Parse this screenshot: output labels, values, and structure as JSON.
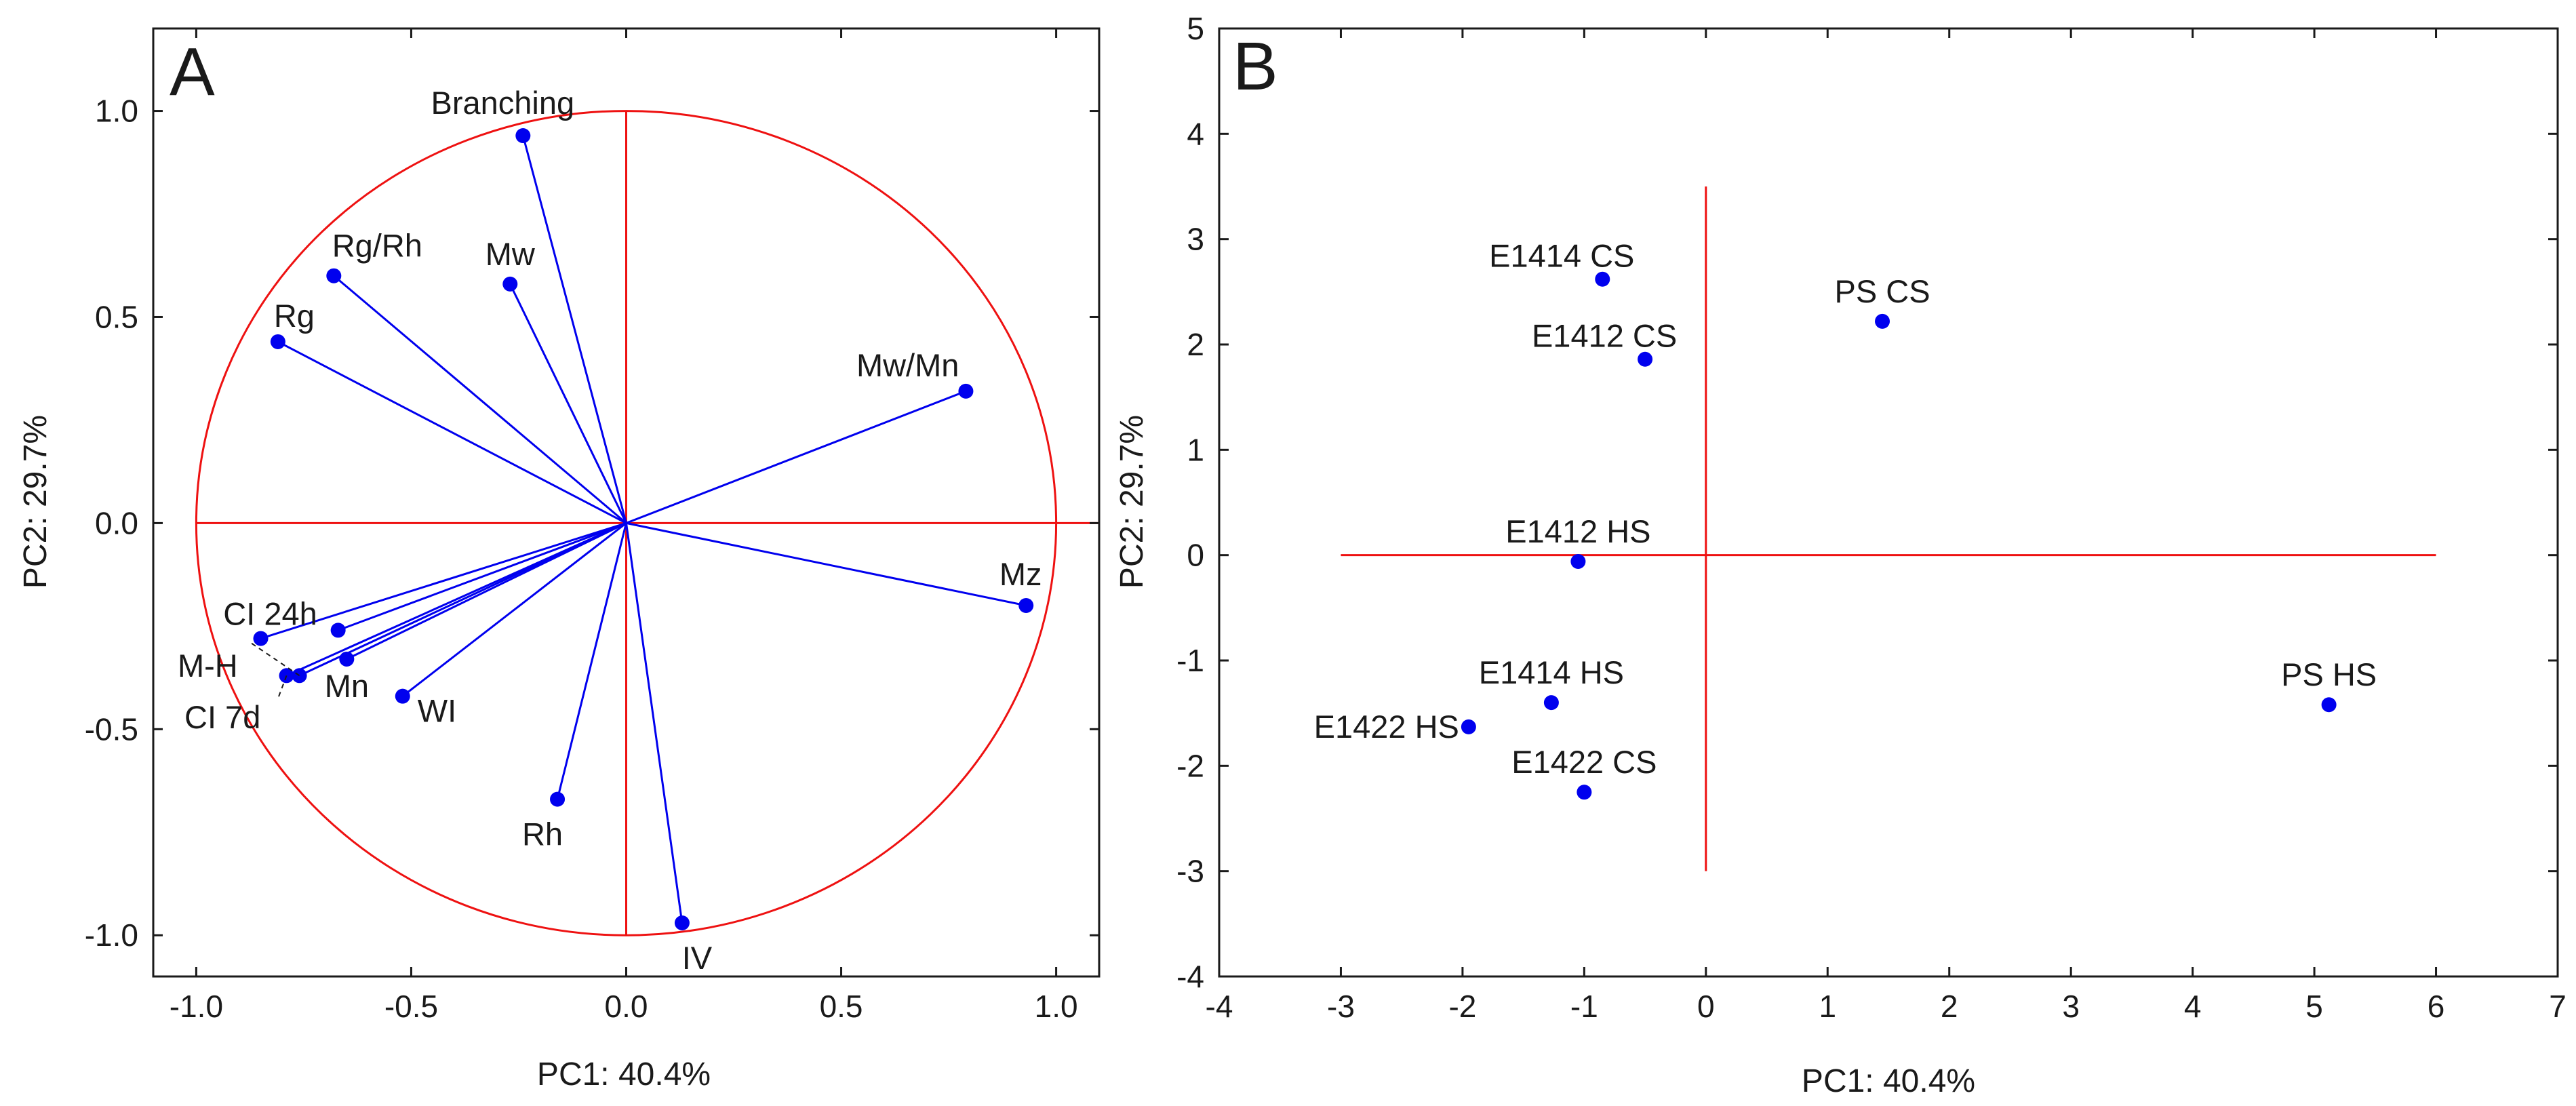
{
  "chart_data": [
    {
      "type": "scatter",
      "subtype": "pca-loadings",
      "panel_label": "A",
      "xlabel": "PC1: 40.4%",
      "ylabel": "PC2: 29.7%",
      "xlim": [
        -1.1,
        1.1
      ],
      "ylim": [
        -1.1,
        1.2
      ],
      "xticks": [
        -1.0,
        -0.5,
        0.0,
        0.5,
        1.0
      ],
      "xtick_labels": [
        "-1.0",
        "-0.5",
        "0.0",
        "0.5",
        "1.0"
      ],
      "yticks": [
        -1.0,
        -0.5,
        0.0,
        0.5,
        1.0
      ],
      "ytick_labels": [
        "-1.0",
        "-0.5",
        "0.0",
        "0.5",
        "1.0"
      ],
      "reference_circle_radius": 1.0,
      "colors": {
        "points": "#0000ee",
        "vectors": "#0000ee",
        "reference": "#ee1111"
      },
      "points": [
        {
          "label": "Branching",
          "x": -0.24,
          "y": 0.94,
          "label_pos": "top"
        },
        {
          "label": "Rg/Rh",
          "x": -0.68,
          "y": 0.6,
          "label_pos": "top-right"
        },
        {
          "label": "Mw",
          "x": -0.27,
          "y": 0.58,
          "label_pos": "top"
        },
        {
          "label": "Rg",
          "x": -0.81,
          "y": 0.44,
          "label_pos": "top-right"
        },
        {
          "label": "Mw/Mn",
          "x": 0.79,
          "y": 0.32,
          "label_pos": "top-left"
        },
        {
          "label": "Mz",
          "x": 0.93,
          "y": -0.2,
          "label_pos": "top-left"
        },
        {
          "label": "CI 24h",
          "x": -0.85,
          "y": -0.28,
          "label_pos": "top-right"
        },
        {
          "label": "",
          "x": -0.67,
          "y": -0.26,
          "label_pos": "none"
        },
        {
          "label": "M-H",
          "x": -0.76,
          "y": -0.37,
          "label_pos": "leader"
        },
        {
          "label": "Mn",
          "x": -0.65,
          "y": -0.33,
          "label_pos": "bottom-right"
        },
        {
          "label": "CI 7d",
          "x": -0.79,
          "y": -0.37,
          "label_pos": "leader"
        },
        {
          "label": "WI",
          "x": -0.52,
          "y": -0.42,
          "label_pos": "right"
        },
        {
          "label": "Rh",
          "x": -0.16,
          "y": -0.67,
          "label_pos": "bottom-left"
        },
        {
          "label": "IV",
          "x": 0.13,
          "y": -0.97,
          "label_pos": "bottom"
        }
      ]
    },
    {
      "type": "scatter",
      "subtype": "pca-scores",
      "panel_label": "B",
      "xlabel": "PC1: 40.4%",
      "ylabel": "PC2: 29.7%",
      "xlim": [
        -4,
        7
      ],
      "ylim": [
        -4,
        5
      ],
      "xticks": [
        -4,
        -3,
        -2,
        -1,
        0,
        1,
        2,
        3,
        4,
        5,
        6,
        7
      ],
      "xtick_labels": [
        "-4",
        "-3",
        "-2",
        "-1",
        "0",
        "1",
        "2",
        "3",
        "4",
        "5",
        "6",
        "7"
      ],
      "yticks": [
        -4,
        -3,
        -2,
        -1,
        0,
        1,
        2,
        3,
        4,
        5
      ],
      "ytick_labels": [
        "-4",
        "-3",
        "-2",
        "-1",
        "0",
        "1",
        "2",
        "3",
        "4",
        "5"
      ],
      "reference_lines": {
        "horizontal": {
          "y": 0,
          "x_from": -3,
          "x_to": 6
        },
        "vertical": {
          "x": 0,
          "y_from": -3,
          "y_to": 3.5
        }
      },
      "colors": {
        "points": "#0000ee",
        "reference": "#ee1111"
      },
      "points": [
        {
          "label": "E1414 CS",
          "x": -0.85,
          "y": 2.62,
          "label_pos": "top-left"
        },
        {
          "label": "PS CS",
          "x": 1.45,
          "y": 2.22,
          "label_pos": "top"
        },
        {
          "label": "E1412 CS",
          "x": -0.5,
          "y": 1.86,
          "label_pos": "top-left"
        },
        {
          "label": "E1412 HS",
          "x": -1.05,
          "y": -0.06,
          "label_pos": "top"
        },
        {
          "label": "PS HS",
          "x": 5.12,
          "y": -1.42,
          "label_pos": "top"
        },
        {
          "label": "E1414 HS",
          "x": -1.27,
          "y": -1.4,
          "label_pos": "top"
        },
        {
          "label": "E1422 HS",
          "x": -1.95,
          "y": -1.63,
          "label_pos": "left"
        },
        {
          "label": "E1422 CS",
          "x": -1.0,
          "y": -2.25,
          "label_pos": "top"
        }
      ]
    }
  ]
}
